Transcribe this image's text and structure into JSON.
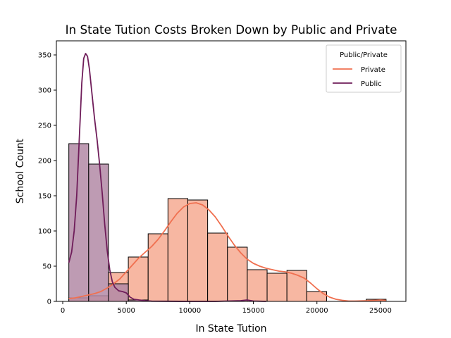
{
  "chart_data": {
    "type": "histogram",
    "title": "In State Tution Costs Broken Down by Public and Private",
    "xlabel": "In State Tution",
    "ylabel": "School Count",
    "xlim": [
      -500,
      27000
    ],
    "ylim": [
      0,
      370
    ],
    "xticks": [
      0,
      5000,
      10000,
      15000,
      20000,
      25000
    ],
    "yticks": [
      0,
      50,
      100,
      150,
      200,
      250,
      300,
      350
    ],
    "bins": [
      {
        "x0": 480,
        "x1": 2040
      },
      {
        "x0": 2040,
        "x1": 3600
      },
      {
        "x0": 3600,
        "x1": 5160
      },
      {
        "x0": 5160,
        "x1": 6720
      },
      {
        "x0": 6720,
        "x1": 8280
      },
      {
        "x0": 8280,
        "x1": 9840
      },
      {
        "x0": 9840,
        "x1": 11400
      },
      {
        "x0": 11400,
        "x1": 12960
      },
      {
        "x0": 12960,
        "x1": 14520
      },
      {
        "x0": 14520,
        "x1": 16080
      },
      {
        "x0": 16080,
        "x1": 17640
      },
      {
        "x0": 17640,
        "x1": 19200
      },
      {
        "x0": 19200,
        "x1": 20760
      },
      {
        "x0": 20760,
        "x1": 22320
      },
      {
        "x0": 22320,
        "x1": 23880
      },
      {
        "x0": 23880,
        "x1": 25440
      }
    ],
    "legend": {
      "title": "Public/Private",
      "position": "upper right"
    },
    "series": [
      {
        "name": "Private",
        "color": "#f07050",
        "fill": "#f7b7a2",
        "counts": [
          5,
          8,
          41,
          63,
          96,
          146,
          144,
          97,
          77,
          45,
          40,
          44,
          14,
          0,
          0,
          3
        ],
        "kde": [
          [
            480,
            4
          ],
          [
            1000,
            5
          ],
          [
            1500,
            7
          ],
          [
            2000,
            9
          ],
          [
            2500,
            11
          ],
          [
            3000,
            14
          ],
          [
            3500,
            19
          ],
          [
            4000,
            25
          ],
          [
            4500,
            32
          ],
          [
            5000,
            42
          ],
          [
            5500,
            52
          ],
          [
            6000,
            62
          ],
          [
            6500,
            70
          ],
          [
            7000,
            78
          ],
          [
            7500,
            88
          ],
          [
            8000,
            100
          ],
          [
            8500,
            113
          ],
          [
            9000,
            125
          ],
          [
            9500,
            134
          ],
          [
            10000,
            139
          ],
          [
            10500,
            140
          ],
          [
            11000,
            137
          ],
          [
            11500,
            130
          ],
          [
            12000,
            120
          ],
          [
            12500,
            107
          ],
          [
            13000,
            93
          ],
          [
            13500,
            80
          ],
          [
            14000,
            69
          ],
          [
            14500,
            60
          ],
          [
            15000,
            54
          ],
          [
            15500,
            50
          ],
          [
            16000,
            47
          ],
          [
            16500,
            45
          ],
          [
            17000,
            43
          ],
          [
            17500,
            42
          ],
          [
            18000,
            40
          ],
          [
            18500,
            37
          ],
          [
            19000,
            33
          ],
          [
            19500,
            26
          ],
          [
            20000,
            18
          ],
          [
            20500,
            11
          ],
          [
            21000,
            6
          ],
          [
            21500,
            3
          ],
          [
            22000,
            1.5
          ],
          [
            22500,
            0.5
          ],
          [
            23000,
            0.5
          ],
          [
            24000,
            1
          ],
          [
            24500,
            1.5
          ],
          [
            25000,
            2
          ],
          [
            25440,
            1.5
          ]
        ]
      },
      {
        "name": "Public",
        "color": "#6f1d5a",
        "fill": "#b38aa6",
        "counts": [
          224,
          195,
          25,
          2,
          0,
          0,
          0,
          0,
          0,
          0,
          0,
          0,
          0,
          0,
          0,
          0
        ],
        "kde": [
          [
            480,
            55
          ],
          [
            700,
            70
          ],
          [
            900,
            100
          ],
          [
            1100,
            150
          ],
          [
            1300,
            230
          ],
          [
            1500,
            310
          ],
          [
            1650,
            345
          ],
          [
            1800,
            352
          ],
          [
            1950,
            348
          ],
          [
            2100,
            330
          ],
          [
            2300,
            295
          ],
          [
            2500,
            260
          ],
          [
            2700,
            230
          ],
          [
            2900,
            195
          ],
          [
            3100,
            155
          ],
          [
            3300,
            110
          ],
          [
            3500,
            72
          ],
          [
            3700,
            45
          ],
          [
            3900,
            28
          ],
          [
            4100,
            20
          ],
          [
            4400,
            15
          ],
          [
            4700,
            14
          ],
          [
            5000,
            12
          ],
          [
            5300,
            6
          ],
          [
            5600,
            3
          ],
          [
            6000,
            2
          ],
          [
            6500,
            1
          ],
          [
            7000,
            0.3
          ],
          [
            10000,
            0
          ],
          [
            12000,
            0
          ],
          [
            14000,
            1
          ],
          [
            14500,
            2
          ],
          [
            15000,
            0.5
          ],
          [
            16000,
            0
          ]
        ]
      }
    ]
  }
}
